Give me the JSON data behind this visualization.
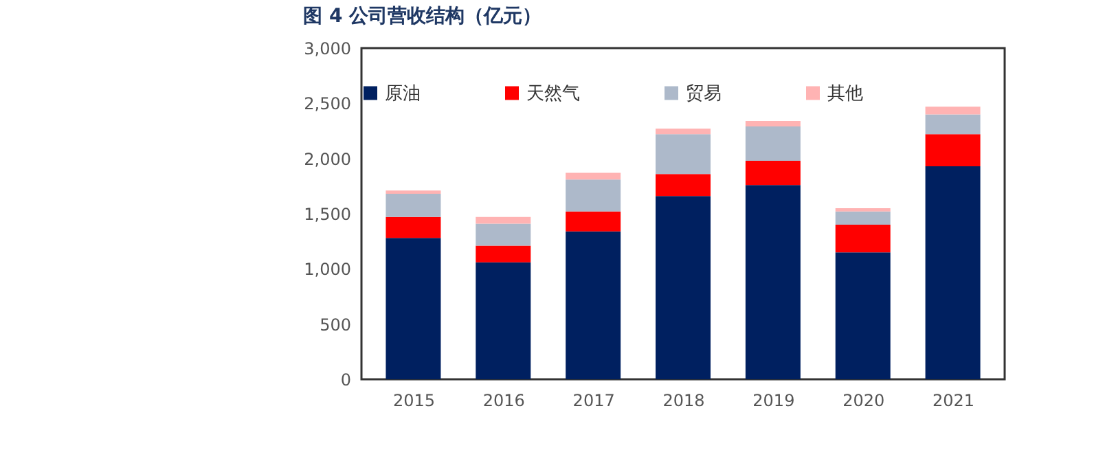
{
  "chart_data": {
    "type": "bar",
    "title": "图 4 公司营收结构（亿元）",
    "stacked": true,
    "categories": [
      "2015",
      "2016",
      "2017",
      "2018",
      "2019",
      "2020",
      "2021"
    ],
    "series": [
      {
        "name": "原油",
        "color": "#002060",
        "values": [
          1280,
          1060,
          1340,
          1660,
          1760,
          1150,
          1930
        ]
      },
      {
        "name": "天然气",
        "color": "#ff0000",
        "values": [
          190,
          150,
          180,
          200,
          220,
          250,
          290
        ]
      },
      {
        "name": "贸易",
        "color": "#adb9ca",
        "values": [
          210,
          200,
          290,
          360,
          310,
          120,
          180
        ]
      },
      {
        "name": "其他",
        "color": "#ffb3b3",
        "values": [
          30,
          60,
          60,
          50,
          50,
          30,
          70
        ]
      }
    ],
    "ylim": [
      0,
      3000
    ],
    "yticks": [
      0,
      500,
      {
        "value": 1000,
        "label": "1,000"
      },
      {
        "value": 1500,
        "label": "1,500"
      },
      {
        "value": 2000,
        "label": "2,000"
      },
      {
        "value": 2500,
        "label": "2,500"
      },
      {
        "value": 3000,
        "label": "3,000"
      }
    ],
    "grid": false,
    "legend": "top"
  }
}
